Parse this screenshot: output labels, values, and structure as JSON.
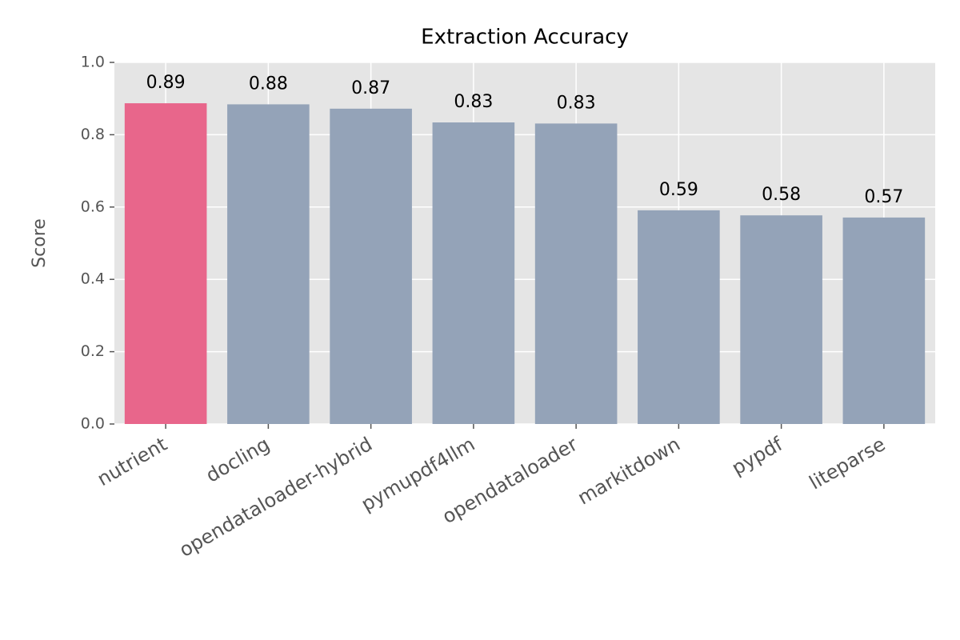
{
  "chart_data": {
    "type": "bar",
    "title": "Extraction Accuracy",
    "ylabel": "Score",
    "categories": [
      "nutrient",
      "docling",
      "opendataloader-hybrid",
      "pymupdf4llm",
      "opendataloader",
      "markitdown",
      "pypdf",
      "liteparse"
    ],
    "values": [
      0.887,
      0.884,
      0.872,
      0.834,
      0.831,
      0.591,
      0.577,
      0.571
    ],
    "value_labels": [
      "0.89",
      "0.88",
      "0.87",
      "0.83",
      "0.83",
      "0.59",
      "0.58",
      "0.57"
    ],
    "colors": [
      "#e8668b",
      "#94a3b8",
      "#94a3b8",
      "#94a3b8",
      "#94a3b8",
      "#94a3b8",
      "#94a3b8",
      "#94a3b8"
    ],
    "ylim": [
      0,
      1
    ],
    "yticks": [
      {
        "value": 0,
        "label": "0.0"
      },
      0.2,
      0.4,
      0.6,
      0.8,
      {
        "value": 1,
        "label": "1.0"
      }
    ],
    "grid": true,
    "background": "#e5e5e5"
  }
}
